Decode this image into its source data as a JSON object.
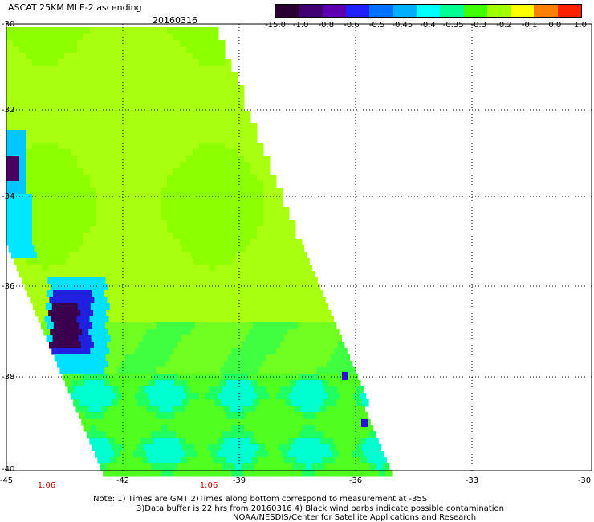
{
  "header": {
    "title": "ASCAT 25KM MLE-2 ascending",
    "date": "20160316"
  },
  "colorbar": {
    "labels": [
      "-15.0",
      "-1.0",
      "-0.8",
      "-0.6",
      "-0.5",
      "-0.45",
      "-0.4",
      "-0.35",
      "-0.3",
      "-0.2",
      "-0.1",
      "0.0",
      "1.0"
    ],
    "colors": [
      "#2a0030",
      "#400070",
      "#5a00b0",
      "#2020ff",
      "#0070ff",
      "#00b0ff",
      "#00ffff",
      "#00ff90",
      "#40ff00",
      "#a0ff00",
      "#ffff00",
      "#ff8000",
      "#ff2000"
    ]
  },
  "axes": {
    "y_labels": [
      "-30",
      "-32",
      "-34",
      "-36",
      "-38",
      "-40"
    ],
    "x_labels": [
      "-45",
      "-42",
      "-39",
      "-36",
      "-33",
      "-30"
    ],
    "time_labels": [
      "1:06",
      "1:06"
    ]
  },
  "notes": {
    "line1": "Note: 1) Times are GMT 2)Times along bottom correspond to measurement at -35S",
    "line2": "3)Data buffer is 22 hrs from 20160316 4) Black wind barbs indicate possible contamination",
    "line3": "NOAA/NESDIS/Center for Satellite Applications and Research"
  }
}
